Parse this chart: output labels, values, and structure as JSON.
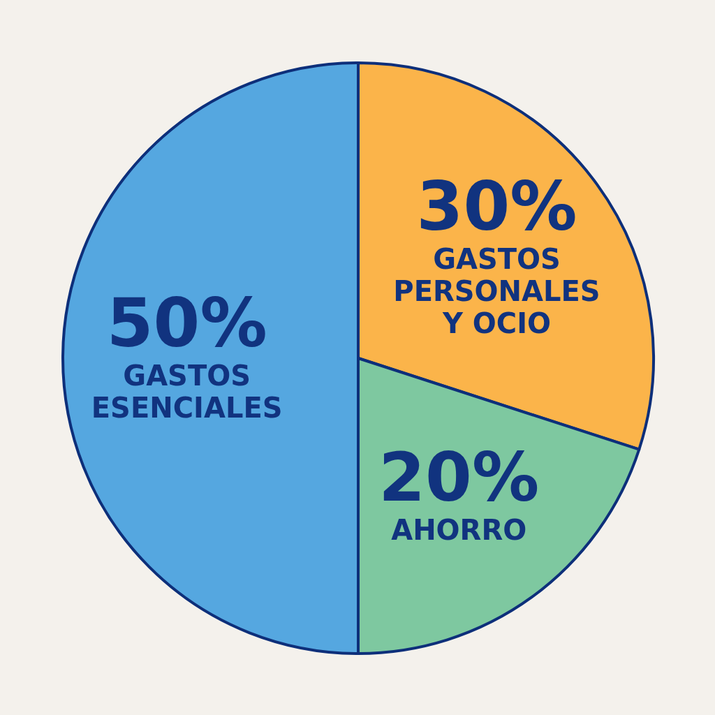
{
  "chart_data": {
    "type": "pie",
    "categories": [
      "GASTOS PERSONALES Y OCIO",
      "AHORRO",
      "GASTOS ESENCIALES"
    ],
    "values": [
      30,
      20,
      50
    ],
    "colors": [
      "#fbb44a",
      "#7ec8a0",
      "#55a7e0"
    ],
    "value_labels": [
      "30%",
      "20%",
      "50%"
    ]
  }
}
